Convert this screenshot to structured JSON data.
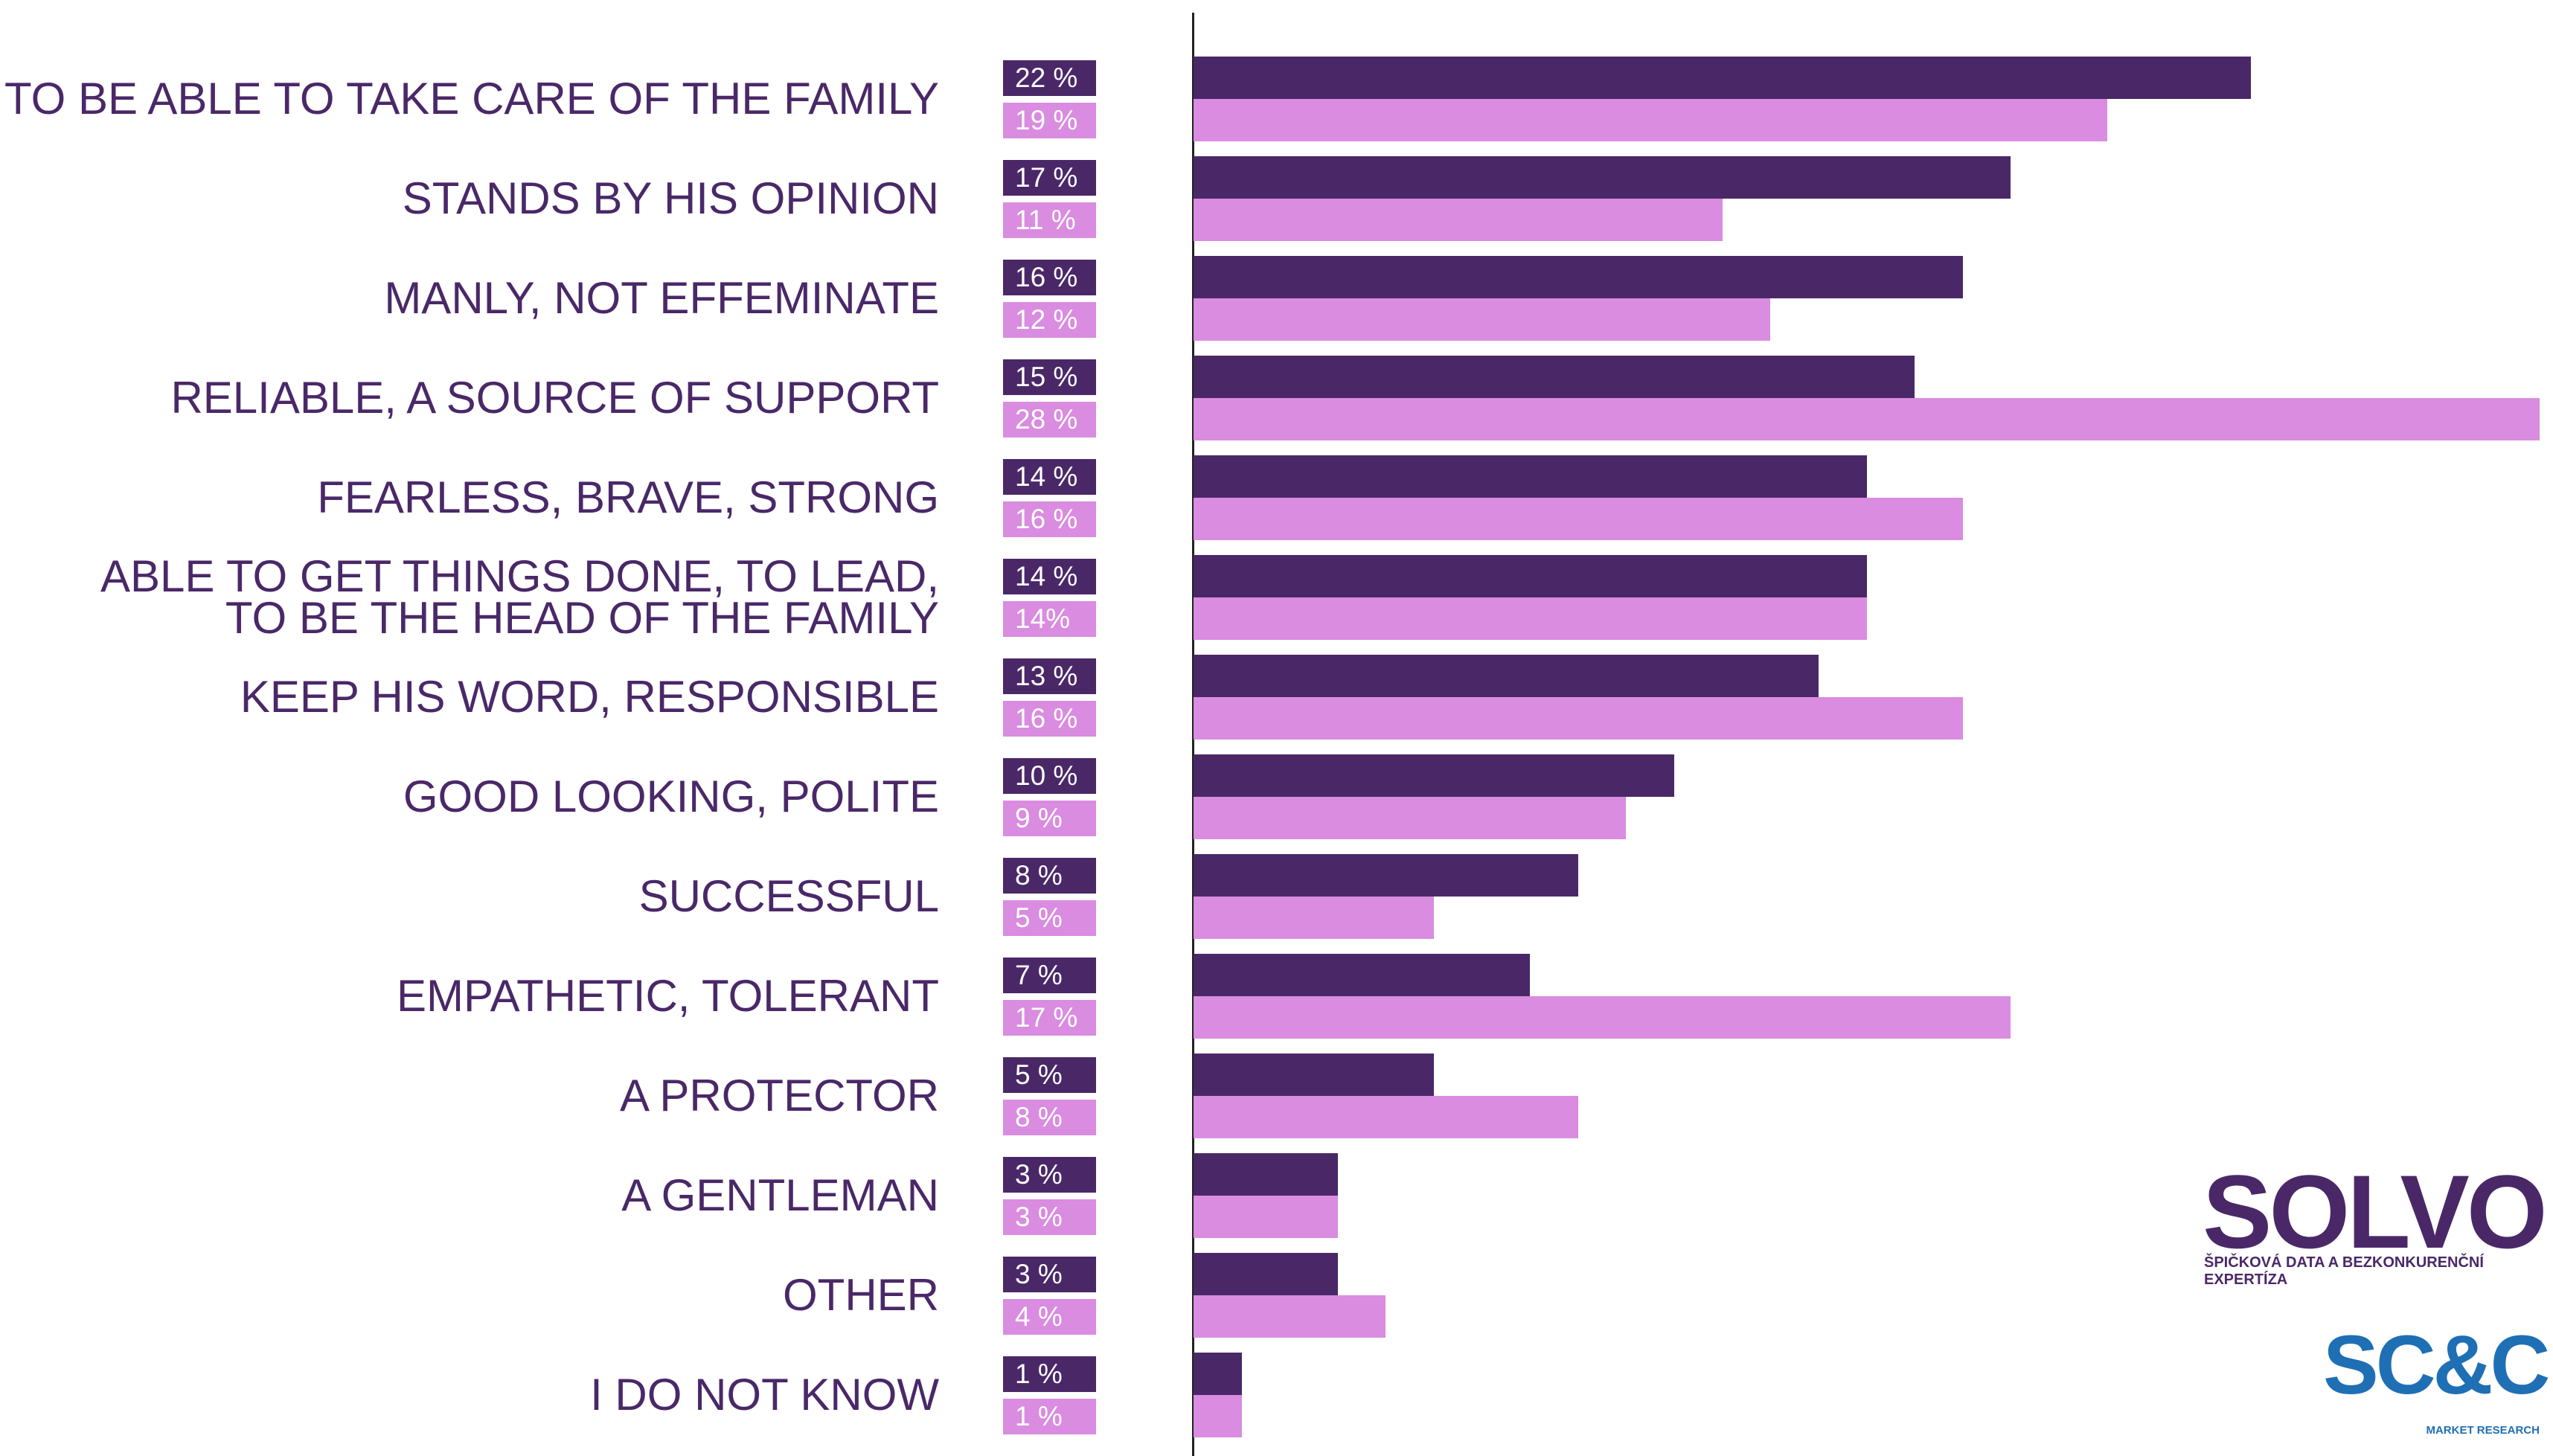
{
  "chart_data": {
    "type": "bar",
    "orientation": "horizontal",
    "categories": [
      "TO BE ABLE TO TAKE CARE OF THE FAMILY",
      "STANDS BY HIS OPINION",
      "MANLY, NOT EFFEMINATE",
      "RELIABLE, A SOURCE OF SUPPORT",
      "FEARLESS, BRAVE, STRONG",
      "ABLE TO GET THINGS DONE, TO LEAD,\nTO BE THE HEAD OF THE FAMILY",
      "KEEP HIS WORD, RESPONSIBLE",
      "GOOD LOOKING, POLITE",
      "SUCCESSFUL",
      "EMPATHETIC, TOLERANT",
      "A PROTECTOR",
      "A GENTLEMAN",
      "OTHER",
      "I DO NOT KNOW"
    ],
    "series": [
      {
        "color": "#4a2868",
        "values": [
          22,
          17,
          16,
          15,
          14,
          14,
          13,
          10,
          8,
          7,
          5,
          3,
          3,
          1
        ],
        "value_labels": [
          "22 %",
          "17 %",
          "16 %",
          "15 %",
          "14 %",
          "14 %",
          "13 %",
          "10 %",
          "8 %",
          "7 %",
          "5 %",
          "3 %",
          "3 %",
          "1 %"
        ]
      },
      {
        "color": "#d98ce0",
        "values": [
          19,
          11,
          12,
          28,
          16,
          14,
          16,
          9,
          5,
          17,
          8,
          3,
          4,
          1
        ],
        "value_labels": [
          "19 %",
          "11 %",
          "12 %",
          "28 %",
          "16 %",
          "14%",
          "16 %",
          "9 %",
          "5 %",
          "17 %",
          "8 %",
          "3 %",
          "4 %",
          "1 %"
        ]
      }
    ],
    "xlim": [
      0,
      28
    ]
  },
  "logos": {
    "solvo": "SOLVO",
    "solvo_tagline": "ŠPIČKOVÁ DATA A BEZKONKURENČNÍ EXPERTÍZA",
    "scc": "SC&C",
    "scc_tagline": "MARKET RESEARCH"
  }
}
